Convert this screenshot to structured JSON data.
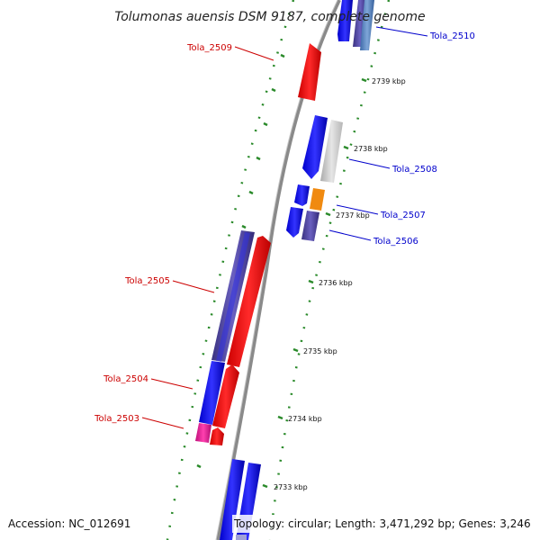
{
  "title": "Tolumonas auensis DSM 9187, complete genome",
  "accession_text": "Accession: NC_012691",
  "summary_text": "Topology: circular; Length: 3,471,292 bp; Genes: 3,246",
  "colors": {
    "forward_label": "#cc0000",
    "reverse_label": "#0000cc",
    "backbone": "#8a8a8a",
    "tick": "#2a8a2a"
  },
  "scale_ticks": [
    "2739 kbp",
    "2738 kbp",
    "2737 kbp",
    "2736 kbp",
    "2735 kbp",
    "2734 kbp",
    "2733 kbp"
  ],
  "genes": [
    {
      "label": "Tola_2510",
      "strand": "reverse"
    },
    {
      "label": "Tola_2509",
      "strand": "forward"
    },
    {
      "label": "Tola_2508",
      "strand": "reverse"
    },
    {
      "label": "Tola_2507",
      "strand": "reverse"
    },
    {
      "label": "Tola_2506",
      "strand": "reverse"
    },
    {
      "label": "Tola_2505",
      "strand": "forward"
    },
    {
      "label": "Tola_2504",
      "strand": "forward"
    },
    {
      "label": "Tola_2503",
      "strand": "forward"
    }
  ]
}
